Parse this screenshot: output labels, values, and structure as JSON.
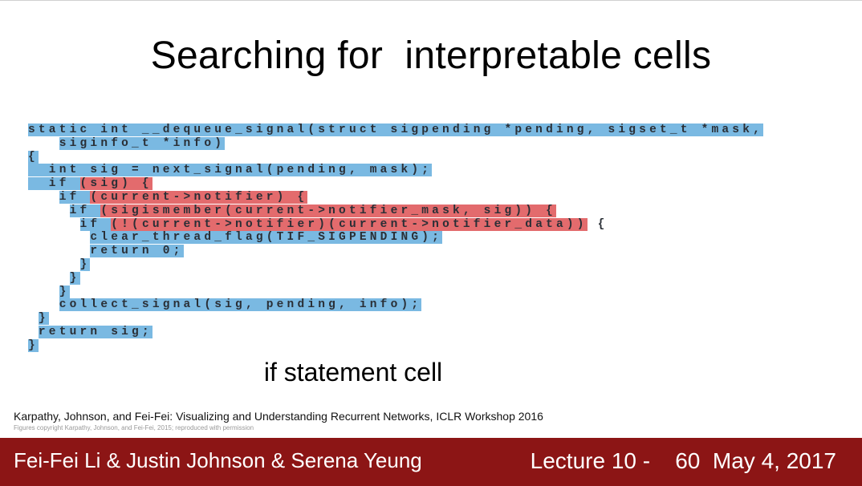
{
  "title": "Searching for  interpretable cells",
  "code": {
    "colors": {
      "blue": "#7ab9e2",
      "red": "#e36b6d"
    },
    "lines": [
      [
        {
          "t": "static int __dequeue_signal(struct sigpending *pending, sigset_t *mask,",
          "c": "b"
        }
      ],
      [
        {
          "t": "   ",
          "c": "n"
        },
        {
          "t": "siginfo_t *info)",
          "c": "b"
        }
      ],
      [
        {
          "t": "{",
          "c": "b"
        }
      ],
      [
        {
          "t": "  int sig = next_signal(pending, mask);",
          "c": "b"
        }
      ],
      [
        {
          "t": "  if ",
          "c": "b"
        },
        {
          "t": "(sig) {",
          "c": "r"
        }
      ],
      [
        {
          "t": "   ",
          "c": "n"
        },
        {
          "t": "if ",
          "c": "b"
        },
        {
          "t": "(current->notifier) {",
          "c": "r"
        }
      ],
      [
        {
          "t": "    ",
          "c": "n"
        },
        {
          "t": "if ",
          "c": "b"
        },
        {
          "t": "(sigismember(current->notifier_mask, sig)) {",
          "c": "r"
        }
      ],
      [
        {
          "t": "     ",
          "c": "n"
        },
        {
          "t": "if ",
          "c": "b"
        },
        {
          "t": "(!(current->notifier)(current->notifier_data))",
          "c": "r"
        },
        {
          "t": " {",
          "c": "n"
        }
      ],
      [
        {
          "t": "      ",
          "c": "n"
        },
        {
          "t": "clear_thread_flag(TIF_SIGPENDING);",
          "c": "b"
        }
      ],
      [
        {
          "t": "      ",
          "c": "n"
        },
        {
          "t": "return 0;",
          "c": "b"
        }
      ],
      [
        {
          "t": "     ",
          "c": "n"
        },
        {
          "t": "}",
          "c": "b"
        }
      ],
      [
        {
          "t": "    ",
          "c": "n"
        },
        {
          "t": "}",
          "c": "b"
        }
      ],
      [
        {
          "t": "   ",
          "c": "n"
        },
        {
          "t": "}",
          "c": "b"
        }
      ],
      [
        {
          "t": "   ",
          "c": "n"
        },
        {
          "t": "collect_signal(sig, pending, info);",
          "c": "b"
        }
      ],
      [
        {
          "t": " ",
          "c": "n"
        },
        {
          "t": "}",
          "c": "b"
        }
      ],
      [
        {
          "t": " ",
          "c": "n"
        },
        {
          "t": "return sig;",
          "c": "b"
        }
      ],
      [
        {
          "t": "}",
          "c": "b"
        }
      ]
    ]
  },
  "caption": "if statement cell",
  "citation": "Karpathy, Johnson, and Fei-Fei: Visualizing and Understanding Recurrent Networks, ICLR Workshop 2016",
  "copyright": "Figures copyright Karpathy, Johnson, and Fei-Fei, 2015; reproduced with permission",
  "footer": {
    "authors": "Fei-Fei Li & Justin Johnson & Serena Yeung",
    "lecture": "Lecture 10 -    60  May 4, 2017",
    "color": "#8c1515"
  }
}
